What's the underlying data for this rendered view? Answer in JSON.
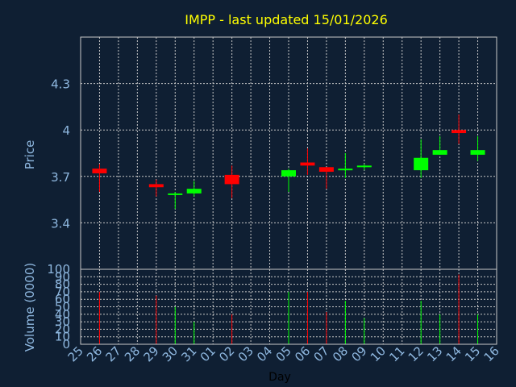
{
  "title": "IMPP - last updated 15/01/2026",
  "colors": {
    "background": "#0f1f33",
    "plot_border": "#c8c8c8",
    "grid": "#c8c8c8",
    "title_text": "#ffff00",
    "axis_text": "#8fb8e0",
    "day_label": "#000000",
    "up": "#00ff00",
    "down": "#ff0000"
  },
  "chart_data": [
    {
      "type": "candlestick",
      "ylabel": "Price",
      "ylim": [
        3.1,
        4.6
      ],
      "yticks": [
        3.4,
        3.7,
        4,
        4.3
      ],
      "ytick_labels": [
        "3.4",
        "3.7",
        "4",
        "4.3"
      ],
      "grid": true,
      "candles": [
        {
          "day": "26",
          "open": 3.75,
          "high": 3.78,
          "low": 3.6,
          "close": 3.72,
          "dir": "down"
        },
        {
          "day": "29",
          "open": 3.65,
          "high": 3.68,
          "low": 3.57,
          "close": 3.63,
          "dir": "down"
        },
        {
          "day": "30",
          "open": 3.58,
          "high": 3.6,
          "low": 3.49,
          "close": 3.59,
          "dir": "up"
        },
        {
          "day": "31",
          "open": 3.59,
          "high": 3.67,
          "low": 3.57,
          "close": 3.62,
          "dir": "up"
        },
        {
          "day": "02",
          "open": 3.71,
          "high": 3.77,
          "low": 3.56,
          "close": 3.65,
          "dir": "down"
        },
        {
          "day": "05",
          "open": 3.7,
          "high": 3.75,
          "low": 3.6,
          "close": 3.74,
          "dir": "up"
        },
        {
          "day": "06",
          "open": 3.79,
          "high": 3.88,
          "low": 3.71,
          "close": 3.77,
          "dir": "down"
        },
        {
          "day": "07",
          "open": 3.76,
          "high": 3.76,
          "low": 3.62,
          "close": 3.73,
          "dir": "down"
        },
        {
          "day": "08",
          "open": 3.74,
          "high": 3.85,
          "low": 3.69,
          "close": 3.75,
          "dir": "up"
        },
        {
          "day": "09",
          "open": 3.76,
          "high": 3.78,
          "low": 3.74,
          "close": 3.77,
          "dir": "up"
        },
        {
          "day": "12",
          "open": 3.74,
          "high": 3.94,
          "low": 3.69,
          "close": 3.82,
          "dir": "up"
        },
        {
          "day": "13",
          "open": 3.84,
          "high": 3.96,
          "low": 3.84,
          "close": 3.87,
          "dir": "up"
        },
        {
          "day": "14",
          "open": 4.0,
          "high": 4.1,
          "low": 3.91,
          "close": 3.98,
          "dir": "down"
        },
        {
          "day": "15",
          "open": 3.84,
          "high": 3.96,
          "low": 3.8,
          "close": 3.87,
          "dir": "up"
        }
      ]
    },
    {
      "type": "bar",
      "ylabel": "Volume (0000)",
      "xlabel": "Day",
      "ylim": [
        0,
        100
      ],
      "yticks": [
        0,
        10,
        20,
        30,
        40,
        50,
        60,
        70,
        80,
        90,
        100
      ],
      "ytick_labels": [
        "0",
        "10",
        "20",
        "30",
        "40",
        "50",
        "60",
        "70",
        "80",
        "90",
        "100"
      ],
      "grid": true,
      "categories": [
        "25",
        "26",
        "27",
        "28",
        "29",
        "30",
        "31",
        "01",
        "02",
        "03",
        "04",
        "05",
        "06",
        "07",
        "08",
        "09",
        "10",
        "11",
        "12",
        "13",
        "14",
        "15",
        "16"
      ],
      "volumes": [
        {
          "day": "26",
          "value": 70,
          "dir": "down"
        },
        {
          "day": "29",
          "value": 65,
          "dir": "down"
        },
        {
          "day": "30",
          "value": 50,
          "dir": "up"
        },
        {
          "day": "31",
          "value": 30,
          "dir": "up"
        },
        {
          "day": "02",
          "value": 40,
          "dir": "down"
        },
        {
          "day": "05",
          "value": 70,
          "dir": "up"
        },
        {
          "day": "06",
          "value": 70,
          "dir": "down"
        },
        {
          "day": "07",
          "value": 43,
          "dir": "down"
        },
        {
          "day": "08",
          "value": 58,
          "dir": "up"
        },
        {
          "day": "09",
          "value": 35,
          "dir": "up"
        },
        {
          "day": "12",
          "value": 58,
          "dir": "up"
        },
        {
          "day": "13",
          "value": 40,
          "dir": "up"
        },
        {
          "day": "14",
          "value": 93,
          "dir": "down"
        },
        {
          "day": "15",
          "value": 40,
          "dir": "up"
        }
      ]
    }
  ]
}
